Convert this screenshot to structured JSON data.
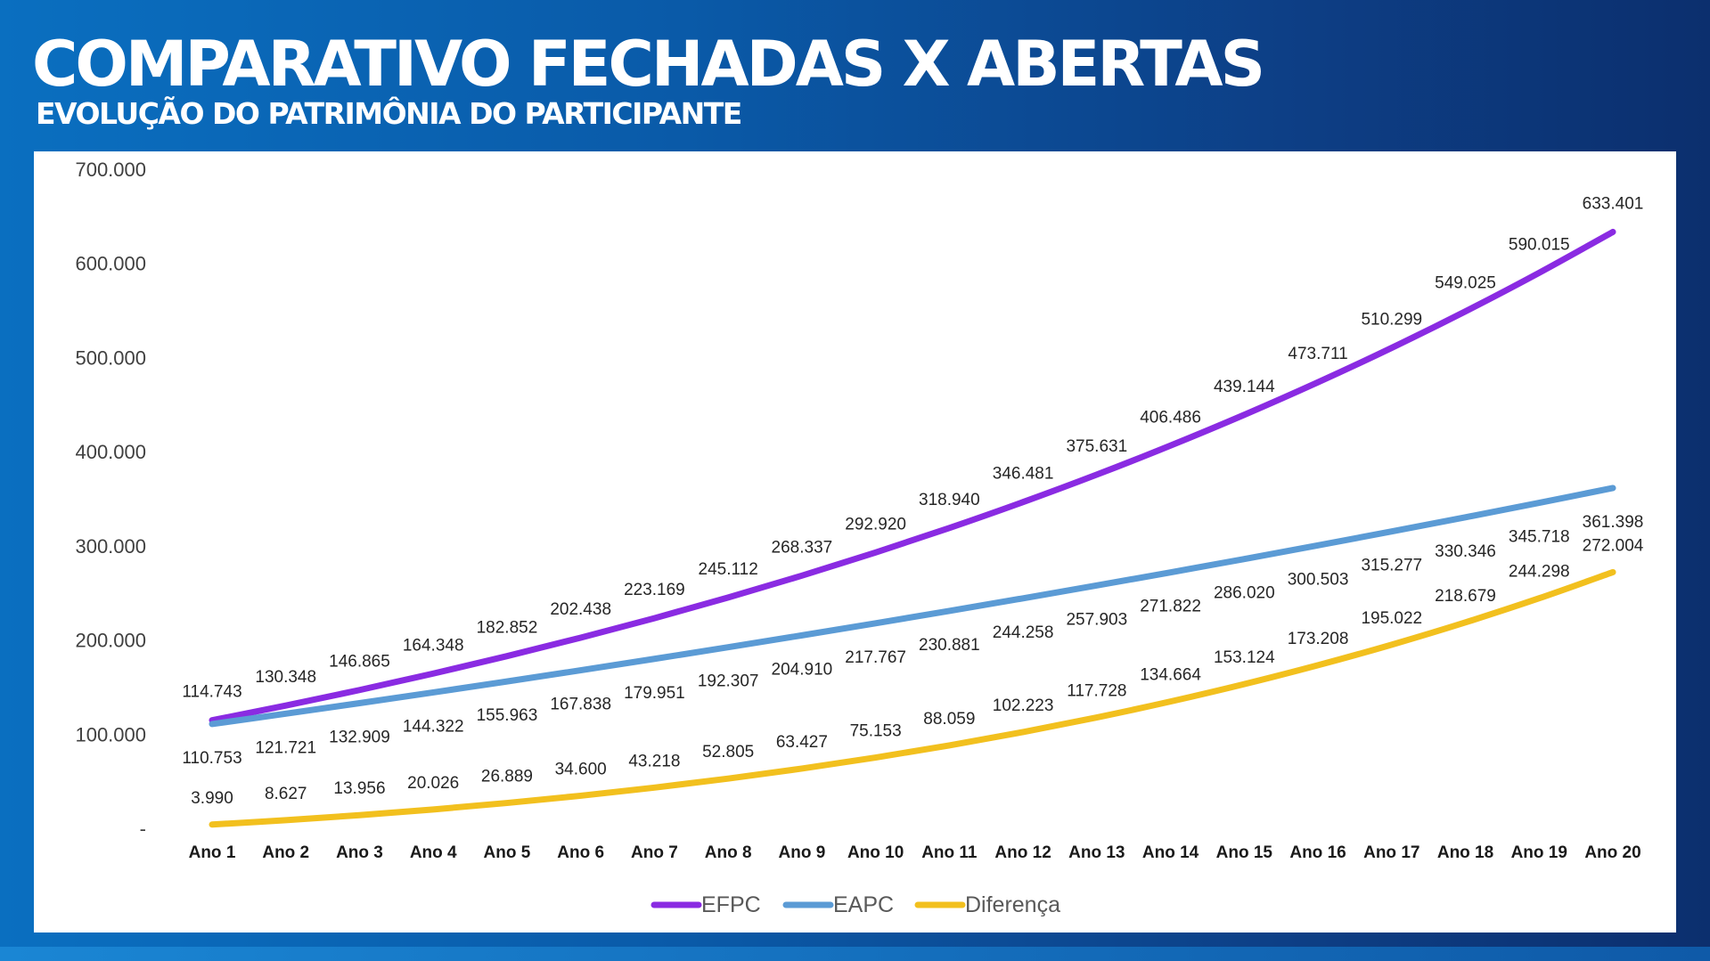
{
  "header": {
    "title": "COMPARATIVO FECHADAS X ABERTAS",
    "subtitle": "EVOLUÇÃO DO PATRIMÔNIA DO PARTICIPANTE"
  },
  "chart_data": {
    "type": "line",
    "title": "",
    "xlabel": "",
    "ylabel": "",
    "ylim": [
      0,
      700000
    ],
    "y_ticks": [
      0,
      100000,
      200000,
      300000,
      400000,
      500000,
      600000,
      700000
    ],
    "y_tick_labels": [
      "-",
      "100.000",
      "200.000",
      "300.000",
      "400.000",
      "500.000",
      "600.000",
      "700.000"
    ],
    "grid": false,
    "legend_position": "bottom",
    "categories": [
      "Ano 1",
      "Ano 2",
      "Ano 3",
      "Ano 4",
      "Ano 5",
      "Ano 6",
      "Ano 7",
      "Ano 8",
      "Ano 9",
      "Ano 10",
      "Ano 11",
      "Ano 12",
      "Ano 13",
      "Ano 14",
      "Ano 15",
      "Ano 16",
      "Ano 17",
      "Ano 18",
      "Ano 19",
      "Ano 20"
    ],
    "series": [
      {
        "name": "EFPC",
        "color": "#8a2be2",
        "values": [
          114743,
          130348,
          146865,
          164348,
          182852,
          202438,
          223169,
          245112,
          268337,
          292920,
          318940,
          346481,
          375631,
          406486,
          439144,
          473711,
          510299,
          549025,
          590015,
          633401
        ],
        "labels": [
          "114.743",
          "130.348",
          "146.865",
          "164.348",
          "182.852",
          "202.438",
          "223.169",
          "245.112",
          "268.337",
          "292.920",
          "318.940",
          "346.481",
          "375.631",
          "406.486",
          "439.144",
          "473.711",
          "510.299",
          "549.025",
          "590.015",
          "633.401"
        ]
      },
      {
        "name": "EAPC",
        "color": "#5b9bd5",
        "values": [
          110753,
          121721,
          132909,
          144322,
          155963,
          167838,
          179951,
          192307,
          204910,
          217767,
          230881,
          244258,
          257903,
          271822,
          286020,
          300503,
          315277,
          330346,
          345718,
          361398
        ],
        "labels": [
          "110.753",
          "121.721",
          "132.909",
          "144.322",
          "155.963",
          "167.838",
          "179.951",
          "192.307",
          "204.910",
          "217.767",
          "230.881",
          "244.258",
          "257.903",
          "271.822",
          "286.020",
          "300.503",
          "315.277",
          "330.346",
          "345.718",
          "361.398"
        ]
      },
      {
        "name": "Diferença",
        "color": "#f2c01e",
        "values": [
          3990,
          8627,
          13956,
          20026,
          26889,
          34600,
          43218,
          52805,
          63427,
          75153,
          88059,
          102223,
          117728,
          134664,
          153124,
          173208,
          195022,
          218679,
          244298,
          272004
        ],
        "labels": [
          "3.990",
          "8.627",
          "13.956",
          "20.026",
          "26.889",
          "34.600",
          "43.218",
          "52.805",
          "63.427",
          "75.153",
          "88.059",
          "102.223",
          "117.728",
          "134.664",
          "153.124",
          "173.208",
          "195.022",
          "218.679",
          "244.298",
          "272.004"
        ]
      }
    ]
  }
}
